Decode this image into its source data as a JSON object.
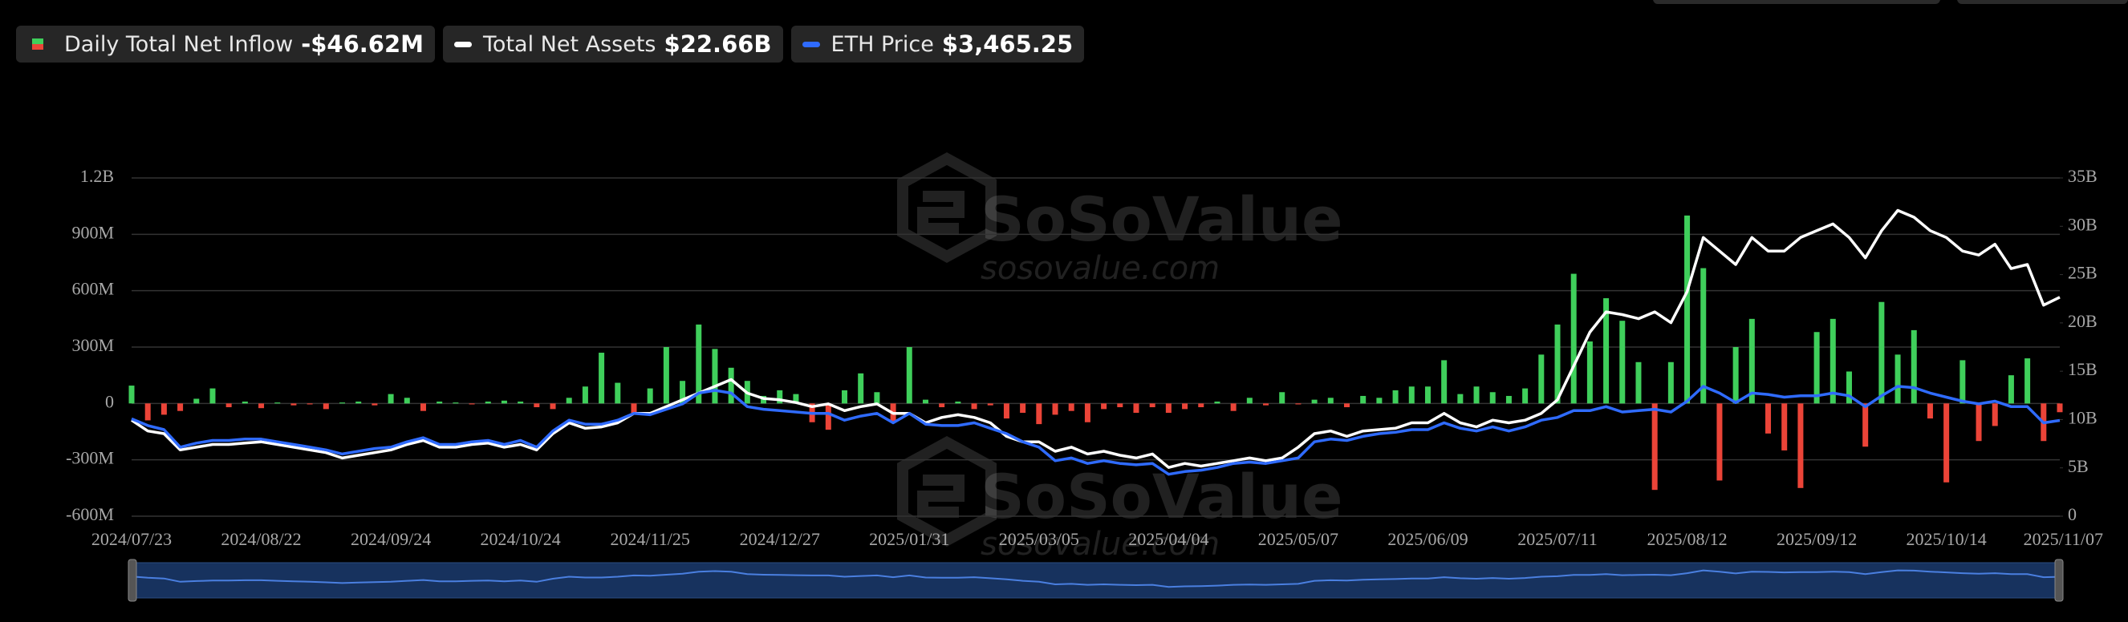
{
  "chart_data": {
    "type": "combo",
    "watermark": {
      "text": "SoSoValue",
      "url": "sosovalue.com"
    },
    "categories": [
      "2024/07/23",
      null,
      null,
      null,
      null,
      null,
      null,
      null,
      "2024/08/22",
      null,
      null,
      null,
      null,
      null,
      null,
      null,
      "2024/09/24",
      null,
      null,
      null,
      null,
      null,
      null,
      null,
      "2024/10/24",
      null,
      null,
      null,
      null,
      null,
      null,
      null,
      "2024/11/25",
      null,
      null,
      null,
      null,
      null,
      null,
      null,
      "2024/12/27",
      null,
      null,
      null,
      null,
      null,
      null,
      null,
      "2025/01/31",
      null,
      null,
      null,
      null,
      null,
      null,
      null,
      "2025/03/05",
      null,
      null,
      null,
      null,
      null,
      null,
      null,
      "2025/04/04",
      null,
      null,
      null,
      null,
      null,
      null,
      null,
      "2025/05/07",
      null,
      null,
      null,
      null,
      null,
      null,
      null,
      "2025/06/09",
      null,
      null,
      null,
      null,
      null,
      null,
      null,
      "2025/07/11",
      null,
      null,
      null,
      null,
      null,
      null,
      null,
      "2025/08/12",
      null,
      null,
      null,
      null,
      null,
      null,
      null,
      "2025/09/12",
      null,
      null,
      null,
      null,
      null,
      null,
      null,
      "2025/10/14",
      null,
      null,
      null,
      null,
      null,
      null,
      "2025/11/07"
    ],
    "ylim": [
      -600,
      1200
    ],
    "yticks": [
      {
        "value": -600,
        "label": "-600M"
      },
      {
        "value": -300,
        "label": "-300M"
      },
      0,
      {
        "value": 300,
        "label": "300M"
      },
      {
        "value": 600,
        "label": "600M"
      },
      {
        "value": 900,
        "label": "900M"
      },
      {
        "value": 1200,
        "label": "1.2B"
      }
    ],
    "y2lim": [
      0,
      35
    ],
    "y2ticks": [
      0,
      {
        "value": 5,
        "label": "5B"
      },
      {
        "value": 10,
        "label": "10B"
      },
      {
        "value": 15,
        "label": "15B"
      },
      {
        "value": 20,
        "label": "20B"
      },
      {
        "value": 25,
        "label": "25B"
      },
      {
        "value": 30,
        "label": "30B"
      },
      {
        "value": 35,
        "label": "35B"
      }
    ],
    "y3lim": [
      -500,
      13500
    ],
    "grid": true,
    "series": [
      {
        "name": "Daily Total Net Inflow",
        "type": "bar",
        "color": "#3fcf5b",
        "negative_color": "#eb4438",
        "legend_value": "-$46.62M",
        "values": [
          95,
          -90,
          -60,
          -40,
          25,
          80,
          -20,
          10,
          -25,
          5,
          -10,
          -5,
          -30,
          5,
          10,
          -10,
          50,
          30,
          -40,
          10,
          5,
          -5,
          10,
          15,
          10,
          -20,
          -30,
          30,
          90,
          270,
          110,
          -50,
          80,
          300,
          120,
          420,
          290,
          190,
          120,
          40,
          70,
          50,
          -100,
          -140,
          70,
          160,
          60,
          -100,
          300,
          20,
          -20,
          10,
          -30,
          -10,
          -80,
          -50,
          -110,
          -60,
          -40,
          -100,
          -30,
          -20,
          -50,
          -20,
          -50,
          -30,
          -20,
          10,
          -40,
          30,
          -10,
          60,
          -5,
          20,
          30,
          -20,
          40,
          30,
          70,
          90,
          90,
          230,
          50,
          90,
          60,
          40,
          80,
          260,
          420,
          690,
          330,
          560,
          440,
          220,
          -460,
          220,
          1000,
          720,
          -410,
          300,
          450,
          -160,
          -250,
          -450,
          380,
          450,
          170,
          -230,
          540,
          260,
          390,
          -80,
          -420,
          230,
          -200,
          -120,
          150,
          240,
          -200,
          -46.62
        ]
      },
      {
        "name": "Total Net Assets",
        "type": "line",
        "axis": "y2",
        "color": "#ffffff",
        "legend_value": "$22.66B",
        "values": [
          9.94,
          8.82,
          8.54,
          6.86,
          7.14,
          7.42,
          7.42,
          7.56,
          7.7,
          7.42,
          7.14,
          6.86,
          6.58,
          6.02,
          6.3,
          6.58,
          6.86,
          7.42,
          7.84,
          7.14,
          7.14,
          7.42,
          7.56,
          7.14,
          7.42,
          6.86,
          8.54,
          9.66,
          9.1,
          9.24,
          9.66,
          10.64,
          10.64,
          11.34,
          12.04,
          12.74,
          13.44,
          14.14,
          12.74,
          12.18,
          12.04,
          11.76,
          11.34,
          11.62,
          10.92,
          11.34,
          11.62,
          10.64,
          10.64,
          9.66,
          10.22,
          10.5,
          10.22,
          9.66,
          8.26,
          7.7,
          7.7,
          6.72,
          7.14,
          6.44,
          6.72,
          6.3,
          6.02,
          6.44,
          5.04,
          5.46,
          5.18,
          5.46,
          5.74,
          6.02,
          5.74,
          6.02,
          7.14,
          8.54,
          8.82,
          8.26,
          8.82,
          8.96,
          9.1,
          9.66,
          9.66,
          10.64,
          9.66,
          9.24,
          9.94,
          9.66,
          9.94,
          10.64,
          12.04,
          15.54,
          19.04,
          21.14,
          20.86,
          20.44,
          21.14,
          20.02,
          23.24,
          28.84,
          27.44,
          26.04,
          28.84,
          27.44,
          27.44,
          28.84,
          29.54,
          30.24,
          28.84,
          26.74,
          29.54,
          31.64,
          30.94,
          29.54,
          28.84,
          27.44,
          27.02,
          28.14,
          25.62,
          26.04,
          21.84,
          22.66
        ]
      },
      {
        "name": "ETH Price",
        "type": "line",
        "axis": "y3",
        "color": "#2f6bff",
        "legend_value": "$3,465.25",
        "values": [
          3532,
          3252,
          3084,
          2356,
          2524,
          2636,
          2636,
          2692,
          2692,
          2580,
          2468,
          2356,
          2244,
          2076,
          2188,
          2300,
          2356,
          2580,
          2748,
          2468,
          2468,
          2580,
          2636,
          2468,
          2636,
          2356,
          3028,
          3476,
          3308,
          3308,
          3476,
          3756,
          3700,
          3924,
          4148,
          4596,
          4708,
          4596,
          4036,
          3924,
          3868,
          3812,
          3756,
          3756,
          3476,
          3644,
          3756,
          3364,
          3756,
          3308,
          3252,
          3252,
          3364,
          3140,
          2916,
          2580,
          2356,
          1796,
          1908,
          1684,
          1796,
          1684,
          1628,
          1684,
          1236,
          1348,
          1404,
          1516,
          1684,
          1740,
          1684,
          1796,
          1908,
          2580,
          2692,
          2636,
          2804,
          2916,
          2972,
          3084,
          3084,
          3364,
          3140,
          3028,
          3196,
          3028,
          3196,
          3476,
          3588,
          3868,
          3868,
          4036,
          3812,
          3868,
          3924,
          3812,
          4260,
          4876,
          4596,
          4204,
          4596,
          4540,
          4428,
          4484,
          4484,
          4596,
          4484,
          4036,
          4484,
          4876,
          4820,
          4596,
          4428,
          4260,
          4148,
          4260,
          4036,
          4036,
          3364,
          3465.25
        ]
      }
    ]
  }
}
